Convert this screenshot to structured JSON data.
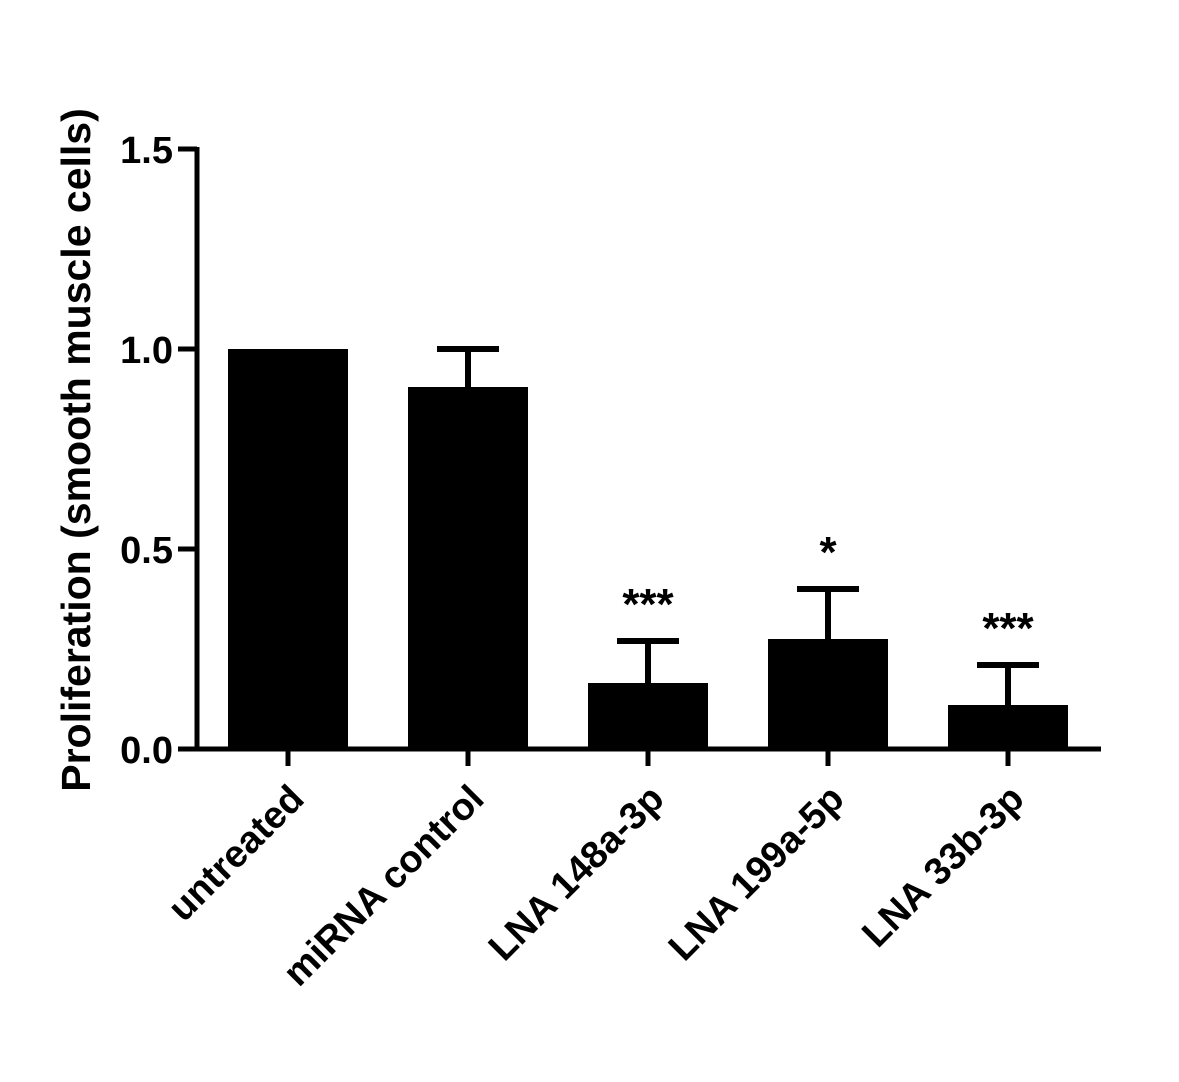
{
  "chart_data": {
    "type": "bar",
    "title": "",
    "xlabel": "",
    "ylabel": "Proliferation (smooth muscle cells)",
    "ylim": [
      0,
      1.5
    ],
    "yticks": [
      "0.0",
      "0.5",
      "1.0",
      "1.5"
    ],
    "ytick_values": [
      0,
      0.5,
      1.0,
      1.5
    ],
    "categories": [
      "untreated",
      "miRNA control",
      "LNA 148a-3p",
      "LNA 199a-5p",
      "LNA 33b-3p"
    ],
    "values": [
      1.0,
      0.905,
      0.165,
      0.275,
      0.11
    ],
    "error": [
      0,
      0.095,
      0.105,
      0.125,
      0.1
    ],
    "significance": [
      "",
      "",
      "***",
      "*",
      "***"
    ],
    "grid": false,
    "bar_color": "#000000"
  }
}
